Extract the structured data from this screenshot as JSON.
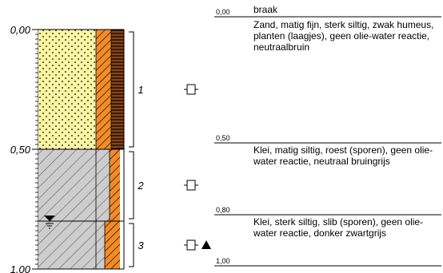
{
  "depth_scale": {
    "ticks": [
      {
        "depth": 0.0,
        "label": "0,00"
      },
      {
        "depth": 0.5,
        "label": "0,50"
      },
      {
        "depth": 1.0,
        "label": "1,00"
      }
    ],
    "minor_step": 0.02
  },
  "water_level_depth": 0.8,
  "layers": [
    {
      "number": "1",
      "top": 0.0,
      "bottom": 0.5,
      "top_label": "0,00",
      "header": "braak",
      "description": "Zand, matig fijn, sterk siltig, zwak humeus, planten (laagjes), geen olie-water reactie, neutraalbruin",
      "main_pattern": "sand",
      "admixture_columns": [
        "humus",
        "plants"
      ]
    },
    {
      "number": "2",
      "top": 0.5,
      "bottom": 0.8,
      "top_label": "0,50",
      "header": "",
      "description": "Klei, matig siltig, roest (sporen), geen olie-water reactie, neutraal bruingrijs",
      "main_pattern": "clay",
      "admixture_columns": [
        "iron"
      ]
    },
    {
      "number": "3",
      "top": 0.8,
      "bottom": 1.0,
      "top_label": "0,80",
      "header": "",
      "description": "Klei, sterk siltig, slib (sporen), geen olie-water reactie, donker zwartgrijs",
      "main_pattern": "clay",
      "admixture_columns": [
        "iron"
      ]
    }
  ],
  "bottom_label": "1,00",
  "sample_symbols": [
    {
      "layer": "1",
      "icon": "sample-box-icon",
      "extra_icon": null
    },
    {
      "layer": "2",
      "icon": "sample-box-icon",
      "extra_icon": null
    },
    {
      "layer": "3",
      "icon": "sample-box-icon",
      "extra_icon": "triangle-icon"
    }
  ],
  "colors": {
    "sand": "#fcf5a3",
    "clay": "#cdcdcd",
    "iron": "#f28c28",
    "humus_line": "#8b4513",
    "line": "#000000"
  }
}
